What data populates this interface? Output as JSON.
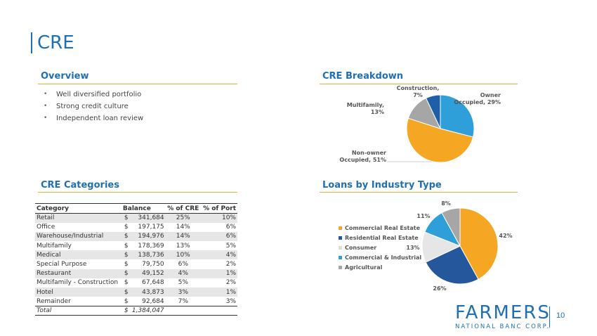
{
  "page": {
    "title": "CRE",
    "page_number": "10"
  },
  "overview": {
    "title": "Overview",
    "bullets": [
      "Well diversified portfolio",
      "Strong credit culture",
      "Independent loan review"
    ]
  },
  "categories": {
    "title": "CRE Categories",
    "headers": [
      "Category",
      "Balance",
      "% of CRE",
      "% of Port"
    ],
    "rows": [
      {
        "category": "Retail",
        "cur": "$",
        "balance": "341,684",
        "pct_cre": "25%",
        "pct_port": "10%"
      },
      {
        "category": "Office",
        "cur": "$",
        "balance": "197,175",
        "pct_cre": "14%",
        "pct_port": "6%"
      },
      {
        "category": "Warehouse/Industrial",
        "cur": "$",
        "balance": "194,976",
        "pct_cre": "14%",
        "pct_port": "6%"
      },
      {
        "category": "Multifamily",
        "cur": "$",
        "balance": "178,369",
        "pct_cre": "13%",
        "pct_port": "5%"
      },
      {
        "category": "Medical",
        "cur": "$",
        "balance": "138,736",
        "pct_cre": "10%",
        "pct_port": "4%"
      },
      {
        "category": "Special Purpose",
        "cur": "$",
        "balance": "79,750",
        "pct_cre": "6%",
        "pct_port": "2%"
      },
      {
        "category": "Restaurant",
        "cur": "$",
        "balance": "49,152",
        "pct_cre": "4%",
        "pct_port": "1%"
      },
      {
        "category": "Multifamily - Construction",
        "cur": "$",
        "balance": "67,648",
        "pct_cre": "5%",
        "pct_port": "2%"
      },
      {
        "category": "Hotel",
        "cur": "$",
        "balance": "43,873",
        "pct_cre": "3%",
        "pct_port": "1%"
      },
      {
        "category": "Remainder",
        "cur": "$",
        "balance": "92,684",
        "pct_cre": "7%",
        "pct_port": "3%"
      }
    ],
    "total": {
      "category": "Total",
      "cur": "$",
      "balance": "1,384,047"
    }
  },
  "breakdown": {
    "title": "CRE Breakdown"
  },
  "industry": {
    "title": "Loans by Industry Type"
  },
  "logo": {
    "word": "FARMERS",
    "sub": "NATIONAL BANC CORP."
  },
  "chart_data": [
    {
      "type": "pie",
      "title": "CRE Breakdown",
      "labels": [
        "Owner Occupied",
        "Non-owner Occupied",
        "Multifamily",
        "Construction"
      ],
      "label_text": [
        "Owner Occupied, 29%",
        "Non-owner Occupied, 51%",
        "Multifamily, 13%",
        "Construction, 7%"
      ],
      "values": [
        29,
        51,
        13,
        7
      ],
      "colors": [
        "#2e9fd8",
        "#f5a623",
        "#a6a6a6",
        "#1f5fa8"
      ]
    },
    {
      "type": "pie",
      "title": "Loans by Industry Type",
      "labels": [
        "Commercial Real Estate",
        "Residential Real Estate",
        "Consumer",
        "Commercial & Industrial",
        "Agricultural"
      ],
      "values": [
        42,
        26,
        13,
        11,
        8
      ],
      "value_labels": [
        "42%",
        "26%",
        "13%",
        "11%",
        "8%"
      ],
      "colors": [
        "#f5a623",
        "#24579b",
        "#e6e6e6",
        "#2e9fd8",
        "#a6a6a6"
      ],
      "legend": "left"
    }
  ]
}
